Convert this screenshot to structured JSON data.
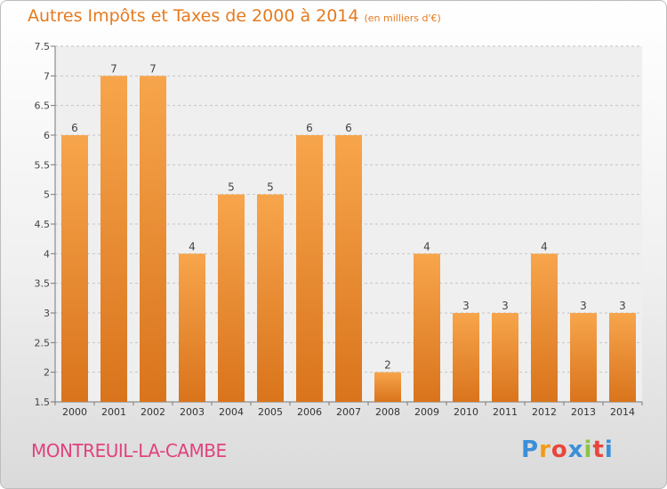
{
  "header": {
    "title": "Autres Impôts et Taxes de 2000 à 2014",
    "unit": "(en milliers d'€)"
  },
  "footer": {
    "commune": "MONTREUIL-LA-CAMBE",
    "logo_letters": [
      "P",
      "r",
      "o",
      "x",
      "i",
      "t",
      "i"
    ],
    "logo_colors": [
      "#3a8fd8",
      "#f29a1a",
      "#e8473c",
      "#3a8fd8",
      "#8bc34a",
      "#e8473c",
      "#3a8fd8"
    ]
  },
  "colors": {
    "bar_light": "#f7a54c",
    "bar_dark": "#d9741c",
    "accent": "#e67a1e"
  },
  "chart_data": {
    "type": "bar",
    "title": "Autres Impôts et Taxes de 2000 à 2014",
    "subtitle": "(en milliers d'€)",
    "xlabel": "",
    "ylabel": "",
    "categories": [
      "2000",
      "2001",
      "2002",
      "2003",
      "2004",
      "2005",
      "2006",
      "2007",
      "2008",
      "2009",
      "2010",
      "2011",
      "2012",
      "2013",
      "2014"
    ],
    "values": [
      6,
      7,
      7,
      4,
      5,
      5,
      6,
      6,
      2,
      4,
      3,
      3,
      4,
      3,
      3
    ],
    "data_labels": [
      "6",
      "7",
      "7",
      "4",
      "5",
      "5",
      "6",
      "6",
      "2",
      "4",
      "3",
      "3",
      "4",
      "3",
      "3"
    ],
    "ylim": [
      1.5,
      7.5
    ],
    "yticks": [
      1.5,
      2,
      2.5,
      3,
      3.5,
      4,
      4.5,
      5,
      5.5,
      6,
      6.5,
      7,
      7.5
    ],
    "ytick_labels": [
      "1.5",
      "2",
      "2.5",
      "3",
      "3.5",
      "4",
      "4.5",
      "5",
      "5.5",
      "6",
      "6.5",
      "7",
      "7.5"
    ],
    "grid": true
  }
}
